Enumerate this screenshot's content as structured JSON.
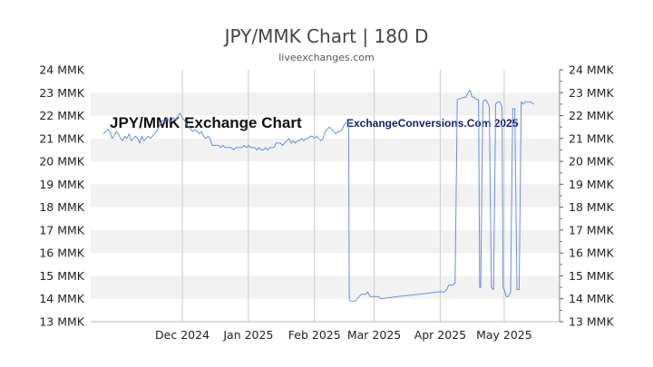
{
  "chart_data": {
    "type": "line",
    "title": "JPY/MMK Chart | 180 D",
    "subtitle": "liveexchanges.com",
    "watermark_left": "JPY/MMK Exchange Chart",
    "watermark_right": "ExchangeConversions.Com 2025",
    "ylim": [
      13,
      24
    ],
    "yticks": [
      "13 MMK",
      "14 MMK",
      "15 MMK",
      "16 MMK",
      "17 MMK",
      "18 MMK",
      "19 MMK",
      "20 MMK",
      "21 MMK",
      "22 MMK",
      "23 MMK",
      "24 MMK"
    ],
    "xticks": [
      {
        "label": "Dec 2024",
        "day": 43
      },
      {
        "label": "Jan 2025",
        "day": 74
      },
      {
        "label": "Feb 2025",
        "day": 105
      },
      {
        "label": "Mar 2025",
        "day": 133
      },
      {
        "label": "Apr 2025",
        "day": 164
      },
      {
        "label": "May 2025",
        "day": 194
      }
    ],
    "xrange": [
      0,
      220
    ],
    "line_color": "#6a8fd8",
    "grid": true,
    "series": [
      {
        "points": [
          [
            6,
            21.2
          ],
          [
            7,
            21.3
          ],
          [
            8,
            21.4
          ],
          [
            9,
            21.3
          ],
          [
            10,
            21.0
          ],
          [
            11,
            21.1
          ],
          [
            12,
            21.3
          ],
          [
            13,
            21.2
          ],
          [
            14,
            21.0
          ],
          [
            15,
            20.9
          ],
          [
            16,
            21.1
          ],
          [
            17,
            21.0
          ],
          [
            18,
            21.2
          ],
          [
            19,
            20.9
          ],
          [
            20,
            21.0
          ],
          [
            21,
            21.1
          ],
          [
            22,
            21.0
          ],
          [
            23,
            20.8
          ],
          [
            24,
            21.1
          ],
          [
            25,
            20.9
          ],
          [
            26,
            21.0
          ],
          [
            27,
            21.1
          ],
          [
            28,
            21.0
          ],
          [
            29,
            21.1
          ],
          [
            30,
            21.2
          ],
          [
            31,
            21.3
          ],
          [
            32,
            21.5
          ],
          [
            33,
            21.7
          ],
          [
            34,
            21.8
          ],
          [
            35,
            21.7
          ],
          [
            36,
            21.9
          ],
          [
            37,
            21.7
          ],
          [
            38,
            21.8
          ],
          [
            39,
            21.9
          ],
          [
            40,
            21.8
          ],
          [
            41,
            22.0
          ],
          [
            42,
            22.1
          ],
          [
            43,
            21.9
          ],
          [
            44,
            21.8
          ],
          [
            45,
            21.6
          ],
          [
            46,
            21.5
          ],
          [
            47,
            21.4
          ],
          [
            48,
            21.3
          ],
          [
            49,
            21.4
          ],
          [
            50,
            21.3
          ],
          [
            51,
            21.2
          ],
          [
            52,
            21.3
          ],
          [
            53,
            21.1
          ],
          [
            54,
            21.0
          ],
          [
            55,
            21.1
          ],
          [
            56,
            21.0
          ],
          [
            57,
            20.7
          ],
          [
            58,
            20.7
          ],
          [
            59,
            20.7
          ],
          [
            60,
            20.7
          ],
          [
            61,
            20.6
          ],
          [
            62,
            20.7
          ],
          [
            63,
            20.6
          ],
          [
            64,
            20.6
          ],
          [
            65,
            20.6
          ],
          [
            66,
            20.6
          ],
          [
            67,
            20.5
          ],
          [
            68,
            20.6
          ],
          [
            69,
            20.6
          ],
          [
            70,
            20.6
          ],
          [
            71,
            20.6
          ],
          [
            72,
            20.7
          ],
          [
            73,
            20.6
          ],
          [
            74,
            20.7
          ],
          [
            75,
            20.6
          ],
          [
            76,
            20.6
          ],
          [
            77,
            20.6
          ],
          [
            78,
            20.5
          ],
          [
            79,
            20.6
          ],
          [
            80,
            20.5
          ],
          [
            81,
            20.5
          ],
          [
            82,
            20.6
          ],
          [
            83,
            20.5
          ],
          [
            84,
            20.6
          ],
          [
            85,
            20.6
          ],
          [
            86,
            20.6
          ],
          [
            87,
            20.8
          ],
          [
            88,
            20.8
          ],
          [
            89,
            20.8
          ],
          [
            90,
            20.7
          ],
          [
            91,
            20.8
          ],
          [
            92,
            20.9
          ],
          [
            93,
            21.0
          ],
          [
            94,
            20.8
          ],
          [
            95,
            20.9
          ],
          [
            96,
            20.8
          ],
          [
            97,
            20.9
          ],
          [
            98,
            20.9
          ],
          [
            99,
            21.0
          ],
          [
            100,
            20.9
          ],
          [
            101,
            21.0
          ],
          [
            102,
            21.0
          ],
          [
            103,
            21.1
          ],
          [
            104,
            21.1
          ],
          [
            105,
            21.0
          ],
          [
            106,
            21.1
          ],
          [
            107,
            21.0
          ],
          [
            108,
            20.9
          ],
          [
            109,
            21.0
          ],
          [
            110,
            21.3
          ],
          [
            111,
            21.4
          ],
          [
            112,
            21.5
          ],
          [
            113,
            21.4
          ],
          [
            114,
            21.3
          ],
          [
            115,
            21.2
          ],
          [
            116,
            21.3
          ],
          [
            117,
            21.3
          ],
          [
            118,
            21.4
          ],
          [
            119,
            21.6
          ],
          [
            120,
            21.7
          ],
          [
            121,
            21.7
          ],
          [
            121.3,
            14.0
          ],
          [
            122,
            13.9
          ],
          [
            124,
            13.9
          ],
          [
            125,
            14.0
          ],
          [
            126,
            14.1
          ],
          [
            127,
            14.2
          ],
          [
            128,
            14.2
          ],
          [
            129,
            14.2
          ],
          [
            130,
            14.3
          ],
          [
            131,
            14.1
          ],
          [
            132,
            14.1
          ],
          [
            133,
            14.1
          ],
          [
            134,
            14.1
          ],
          [
            135,
            14.1
          ],
          [
            136,
            14.0
          ],
          [
            144,
            14.1
          ],
          [
            154,
            14.2
          ],
          [
            163,
            14.3
          ],
          [
            166,
            14.3
          ],
          [
            167,
            14.4
          ],
          [
            168,
            14.6
          ],
          [
            169,
            14.6
          ],
          [
            170,
            14.6
          ],
          [
            171,
            14.7
          ],
          [
            172,
            22.7
          ],
          [
            175,
            22.8
          ],
          [
            176,
            22.8
          ],
          [
            177,
            23.0
          ],
          [
            178,
            23.1
          ],
          [
            179,
            22.8
          ],
          [
            180,
            22.8
          ],
          [
            181,
            22.7
          ],
          [
            182,
            22.7
          ],
          [
            182.5,
            14.5
          ],
          [
            183,
            14.5
          ],
          [
            184,
            22.6
          ],
          [
            185,
            22.7
          ],
          [
            186,
            22.6
          ],
          [
            187,
            22.4
          ],
          [
            188,
            14.5
          ],
          [
            189,
            14.4
          ],
          [
            190,
            22.5
          ],
          [
            191,
            22.6
          ],
          [
            192,
            22.6
          ],
          [
            193,
            22.4
          ],
          [
            193.5,
            14.5
          ],
          [
            194,
            14.4
          ],
          [
            195,
            14.1
          ],
          [
            196,
            14.1
          ],
          [
            197,
            14.3
          ],
          [
            198,
            22.3
          ],
          [
            199,
            22.3
          ],
          [
            200,
            14.4
          ],
          [
            201,
            14.4
          ],
          [
            202,
            22.6
          ],
          [
            203,
            22.5
          ],
          [
            204,
            22.6
          ],
          [
            206,
            22.6
          ],
          [
            208,
            22.5
          ]
        ]
      }
    ]
  }
}
